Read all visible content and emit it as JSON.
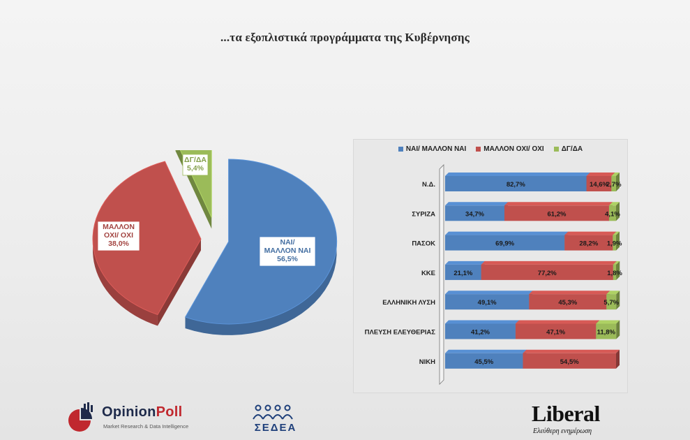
{
  "title": "...τα εξοπλιστικά προγράμματα της Κυβέρνησης",
  "chart_data": [
    {
      "type": "pie",
      "title": "",
      "slices": [
        {
          "label": "ΝΑΙ/ ΜΑΛΛΟΝ ΝΑΙ",
          "value": 56.5,
          "label_text": "56,5%",
          "color": "#4f81bd"
        },
        {
          "label": "ΜΑΛΛΟΝ ΟΧΙ/ ΟΧΙ",
          "value": 38.0,
          "label_text": "38,0%",
          "color": "#c0504d"
        },
        {
          "label": "ΔΓ/ΔΑ",
          "value": 5.4,
          "label_text": "5,4%",
          "color": "#9bbb59"
        }
      ]
    },
    {
      "type": "bar",
      "orientation": "horizontal",
      "stacked": "100%",
      "title": "",
      "legend_position": "top",
      "categories": [
        "Ν.Δ.",
        "ΣΥΡΙΖΑ",
        "ΠΑΣΟΚ",
        "ΚΚΕ",
        "ΕΛΛΗΝΙΚΗ ΛΥΣΗ",
        "ΠΛΕΥΣΗ ΕΛΕΥΘΕΡΙΑΣ",
        "ΝΙΚΗ"
      ],
      "series": [
        {
          "name": "ΝΑΙ/ ΜΑΛΛΟΝ ΝΑΙ",
          "color": "#4f81bd",
          "values": [
            82.7,
            34.7,
            69.9,
            21.1,
            49.1,
            41.2,
            45.5
          ],
          "labels": [
            "82,7%",
            "34,7%",
            "69,9%",
            "21,1%",
            "49,1%",
            "41,2%",
            "45,5%"
          ]
        },
        {
          "name": "ΜΑΛΛΟΝ ΟΧΙ/ ΟΧΙ",
          "color": "#c0504d",
          "values": [
            14.6,
            61.2,
            28.2,
            77.2,
            45.3,
            47.1,
            54.5
          ],
          "labels": [
            "14,6%",
            "61,2%",
            "28,2%",
            "77,2%",
            "45,3%",
            "47,1%",
            "54,5%"
          ]
        },
        {
          "name": "ΔΓ/ΔΑ",
          "color": "#9bbb59",
          "values": [
            2.7,
            4.1,
            1.9,
            1.8,
            5.7,
            11.8,
            0
          ],
          "labels": [
            "2,7%",
            "4,1%",
            "1,9%",
            "1,8%",
            "5,7%",
            "11,8%",
            ""
          ]
        }
      ]
    }
  ],
  "logos": {
    "opinionpoll": {
      "name_a": "Opinion",
      "name_b": "Poll",
      "tagline": "Market Research & Data Intelligence"
    },
    "sedea": {
      "name": "ΣΕΔΕΑ"
    },
    "liberal": {
      "name": "Liberal",
      "tagline": "Ελεύθερη ενημέρωση"
    }
  }
}
